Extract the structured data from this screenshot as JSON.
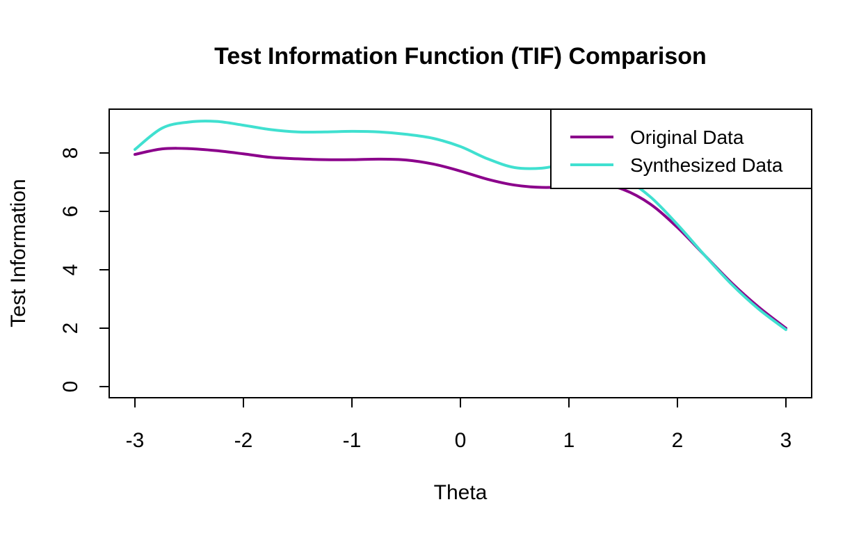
{
  "chart_data": {
    "type": "line",
    "title": "Test Information Function (TIF) Comparison",
    "xlabel": "Theta",
    "ylabel": "Test Information",
    "xlim": [
      -3,
      3
    ],
    "ylim": [
      0,
      9
    ],
    "x_ticks": [
      "-3",
      "-2",
      "-1",
      "0",
      "1",
      "2",
      "3"
    ],
    "y_ticks": [
      "0",
      "2",
      "4",
      "6",
      "8"
    ],
    "legend_position": "top-right",
    "grid": false,
    "series": [
      {
        "name": "Original Data",
        "color": "#8B008B",
        "x": [
          -3.0,
          -2.75,
          -2.5,
          -2.25,
          -2.0,
          -1.75,
          -1.5,
          -1.25,
          -1.0,
          -0.75,
          -0.5,
          -0.25,
          0.0,
          0.25,
          0.5,
          0.75,
          1.0,
          1.25,
          1.5,
          1.75,
          2.0,
          2.25,
          2.5,
          2.75,
          3.0
        ],
        "values": [
          7.95,
          8.14,
          8.15,
          8.08,
          7.97,
          7.85,
          7.8,
          7.77,
          7.77,
          7.79,
          7.76,
          7.62,
          7.38,
          7.1,
          6.9,
          6.82,
          6.85,
          6.95,
          6.75,
          6.25,
          5.45,
          4.5,
          3.55,
          2.72,
          2.0
        ]
      },
      {
        "name": "Synthesized Data",
        "color": "#40E0D0",
        "x": [
          -3.0,
          -2.75,
          -2.5,
          -2.25,
          -2.0,
          -1.75,
          -1.5,
          -1.25,
          -1.0,
          -0.75,
          -0.5,
          -0.25,
          0.0,
          0.25,
          0.5,
          0.75,
          1.0,
          1.25,
          1.5,
          1.75,
          2.0,
          2.25,
          2.5,
          2.75,
          3.0
        ],
        "values": [
          8.12,
          8.85,
          9.06,
          9.08,
          8.95,
          8.8,
          8.72,
          8.72,
          8.74,
          8.72,
          8.64,
          8.5,
          8.22,
          7.8,
          7.5,
          7.48,
          7.62,
          7.5,
          7.15,
          6.5,
          5.55,
          4.5,
          3.5,
          2.65,
          1.95
        ]
      }
    ]
  }
}
